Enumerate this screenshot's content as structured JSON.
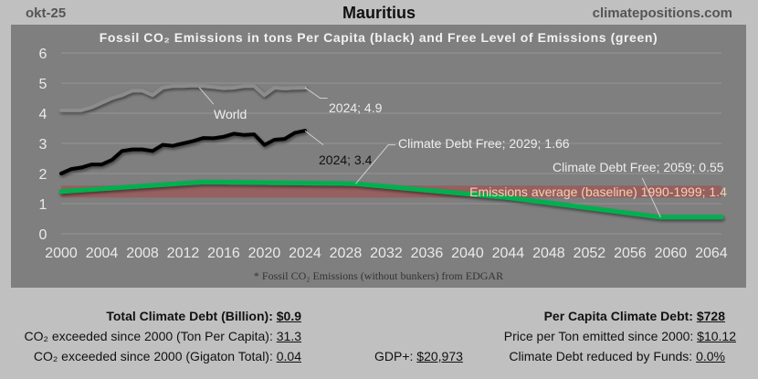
{
  "header": {
    "date": "okt-25",
    "country": "Mauritius",
    "site": "climatepositions.com"
  },
  "chart_data": {
    "type": "line",
    "title": "Fossil CO₂ Emissions in tons Per Capita (black) and Free Level of Emissions (green)",
    "xlabel": "",
    "ylabel": "",
    "xlim": [
      2000,
      2065
    ],
    "ylim": [
      0,
      6
    ],
    "grid": true,
    "x_ticks": [
      "2000",
      "2004",
      "2008",
      "2012",
      "2016",
      "2020",
      "2024",
      "2028",
      "2032",
      "2036",
      "2040",
      "2044",
      "2048",
      "2052",
      "2056",
      "2060",
      "2064"
    ],
    "y_ticks": [
      "0",
      "1",
      "2",
      "3",
      "4",
      "5",
      "6"
    ],
    "series": [
      {
        "name": "World",
        "color": "#8c8c8c",
        "x": [
          2000,
          2001,
          2002,
          2003,
          2004,
          2005,
          2006,
          2007,
          2008,
          2009,
          2010,
          2011,
          2012,
          2013,
          2014,
          2015,
          2016,
          2017,
          2018,
          2019,
          2020,
          2021,
          2022,
          2023,
          2024
        ],
        "values": [
          4.1,
          4.1,
          4.1,
          4.2,
          4.35,
          4.5,
          4.6,
          4.75,
          4.75,
          4.6,
          4.85,
          4.9,
          4.9,
          4.92,
          4.9,
          4.87,
          4.83,
          4.85,
          4.9,
          4.9,
          4.6,
          4.85,
          4.82,
          4.84,
          4.85
        ]
      },
      {
        "name": "Mauritius",
        "color": "#000000",
        "x": [
          2000,
          2001,
          2002,
          2003,
          2004,
          2005,
          2006,
          2007,
          2008,
          2009,
          2010,
          2011,
          2012,
          2013,
          2014,
          2015,
          2016,
          2017,
          2018,
          2019,
          2020,
          2021,
          2022,
          2023,
          2024
        ],
        "values": [
          2.0,
          2.15,
          2.2,
          2.3,
          2.3,
          2.45,
          2.75,
          2.8,
          2.8,
          2.75,
          2.95,
          2.92,
          3.0,
          3.08,
          3.18,
          3.17,
          3.22,
          3.32,
          3.28,
          3.3,
          2.95,
          3.12,
          3.15,
          3.35,
          3.42
        ]
      },
      {
        "name": "Free Level of Emissions",
        "color": "#00b050",
        "x": [
          2000,
          2014,
          2029,
          2044,
          2059,
          2065
        ],
        "values": [
          1.4,
          1.72,
          1.66,
          1.2,
          0.55,
          0.55
        ]
      }
    ],
    "baseline_band": {
      "label": "Emissions average (baseline) 1990-1999; 1.4",
      "value": 1.4,
      "low": 1.2,
      "high": 1.6,
      "color": "#9a5a5a"
    },
    "annotations": [
      {
        "text": "World",
        "x": 2014,
        "y": 4.85
      },
      {
        "text": "2024; 4.9",
        "x": 2024,
        "y": 4.85
      },
      {
        "text": "2024; 3.4",
        "x": 2024,
        "y": 3.42
      },
      {
        "text": "Climate Debt Free; 2029; 1.66",
        "x": 2029,
        "y": 1.66
      },
      {
        "text": "Climate Debt Free; 2059; 0.55",
        "x": 2059,
        "y": 0.55
      }
    ],
    "footnote": "* Fossil CO₂ Emissions (without bunkers) from EDGAR"
  },
  "stats": {
    "total_debt_label": "Total Climate Debt (Billion):",
    "total_debt_value": "$0.9",
    "exceeded_pc_label": "CO₂ exceeded since 2000 (Ton Per Capita):",
    "exceeded_pc_value": "31.3",
    "exceeded_gt_label": "CO₂ exceeded since 2000 (Gigaton Total):",
    "exceeded_gt_value": "0.04",
    "gdp_label": "GDP+:",
    "gdp_value": "$20,973",
    "per_capita_debt_label": "Per Capita Climate Debt:",
    "per_capita_debt_value": "$728",
    "price_label": "Price per Ton emitted since 2000:",
    "price_value": "$10.12",
    "funds_label": "Climate Debt reduced by Funds:",
    "funds_value": "0.0%"
  }
}
